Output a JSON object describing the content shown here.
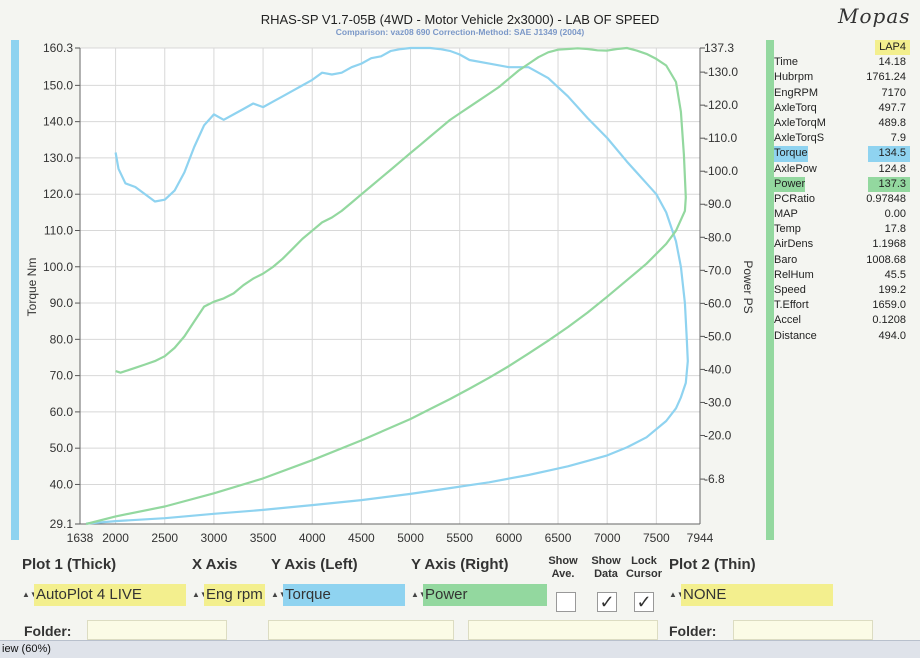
{
  "header": {
    "title": "RHAS-SP V1.7-05B  (4WD - Motor Vehicle 2x3000) - LAB OF SPEED",
    "subtitle": "Comparison: vaz08 690      Correction-Method: SAE J1349 (2004)",
    "handwriting": "Mopas"
  },
  "chart_data": {
    "type": "line",
    "x_label": "",
    "x_ticks": [
      "1638",
      "2000",
      "2500",
      "3000",
      "3500",
      "4000",
      "4500",
      "5000",
      "5500",
      "6000",
      "6500",
      "7000",
      "7500",
      "7944"
    ],
    "xlim": [
      1638,
      7944
    ],
    "y_left": {
      "label": "Torque Nm",
      "ylim": [
        29.1,
        160.3
      ],
      "ticks": [
        "29.1",
        "40.0",
        "50.0",
        "60.0",
        "70.0",
        "80.0",
        "90.0",
        "100.0",
        "110.0",
        "120.0",
        "130.0",
        "140.0",
        "150.0",
        "160.3"
      ]
    },
    "y_right": {
      "label": "Power PS",
      "ylim": [
        -6.8,
        137.3
      ],
      "ticks": [
        "-6.8",
        "-20.0",
        "-30.0",
        "-40.0",
        "-50.0",
        "-60.0",
        "-70.0",
        "-80.0",
        "-90.0",
        "-100.0",
        "-110.0",
        "-120.0",
        "-130.0",
        "137.3"
      ]
    },
    "grid": true,
    "series": [
      {
        "name": "Torque",
        "axis": "left",
        "color": "#8fd3f0",
        "points": [
          [
            2000,
            131.5
          ],
          [
            2030,
            127
          ],
          [
            2100,
            123
          ],
          [
            2200,
            122
          ],
          [
            2300,
            120
          ],
          [
            2400,
            118
          ],
          [
            2500,
            118.5
          ],
          [
            2600,
            121
          ],
          [
            2700,
            126
          ],
          [
            2800,
            133
          ],
          [
            2900,
            139
          ],
          [
            3000,
            142
          ],
          [
            3100,
            140.5
          ],
          [
            3200,
            142
          ],
          [
            3300,
            143.5
          ],
          [
            3400,
            145
          ],
          [
            3500,
            144
          ],
          [
            3600,
            145.5
          ],
          [
            3700,
            147
          ],
          [
            3800,
            148.5
          ],
          [
            3900,
            150
          ],
          [
            4000,
            151.5
          ],
          [
            4100,
            153.5
          ],
          [
            4200,
            153
          ],
          [
            4300,
            153.5
          ],
          [
            4400,
            155
          ],
          [
            4500,
            156
          ],
          [
            4600,
            157.5
          ],
          [
            4700,
            158
          ],
          [
            4800,
            159.5
          ],
          [
            4900,
            160
          ],
          [
            5000,
            160.3
          ],
          [
            5100,
            160.3
          ],
          [
            5200,
            160.3
          ],
          [
            5300,
            160
          ],
          [
            5400,
            159.5
          ],
          [
            5500,
            158.5
          ],
          [
            5600,
            157
          ],
          [
            5800,
            156
          ],
          [
            6000,
            155
          ],
          [
            6200,
            155
          ],
          [
            6400,
            152
          ],
          [
            6600,
            147
          ],
          [
            6800,
            141
          ],
          [
            7000,
            135.5
          ],
          [
            7200,
            129
          ],
          [
            7400,
            123
          ],
          [
            7500,
            120
          ],
          [
            7600,
            115
          ],
          [
            7700,
            107
          ],
          [
            7750,
            100
          ],
          [
            7790,
            90
          ],
          [
            7810,
            80
          ],
          [
            7820,
            74
          ],
          [
            7800,
            68
          ],
          [
            7750,
            64
          ],
          [
            7700,
            61
          ],
          [
            7600,
            57.5
          ],
          [
            7400,
            53
          ],
          [
            7200,
            50.2
          ],
          [
            7000,
            48
          ],
          [
            6800,
            46.5
          ],
          [
            6600,
            45
          ],
          [
            6400,
            43.8
          ],
          [
            6200,
            42.6
          ],
          [
            6000,
            41.6
          ],
          [
            5800,
            40.6
          ],
          [
            5600,
            39.8
          ],
          [
            5400,
            39
          ],
          [
            5200,
            38.2
          ],
          [
            5000,
            37.4
          ],
          [
            4500,
            35.7
          ],
          [
            4000,
            34.3
          ],
          [
            3500,
            33
          ],
          [
            3000,
            31.9
          ],
          [
            2500,
            30.7
          ],
          [
            2000,
            29.9
          ],
          [
            1700,
            29.2
          ]
        ]
      },
      {
        "name": "Power",
        "axis": "right",
        "color": "#93d89f",
        "points": [
          [
            2000,
            39.5
          ],
          [
            2050,
            39
          ],
          [
            2100,
            39.5
          ],
          [
            2200,
            40.5
          ],
          [
            2300,
            41.5
          ],
          [
            2400,
            42.5
          ],
          [
            2500,
            44
          ],
          [
            2600,
            46.5
          ],
          [
            2700,
            50
          ],
          [
            2800,
            54.5
          ],
          [
            2900,
            59
          ],
          [
            3000,
            60.5
          ],
          [
            3100,
            61.5
          ],
          [
            3200,
            63
          ],
          [
            3300,
            65.5
          ],
          [
            3400,
            67.5
          ],
          [
            3500,
            69
          ],
          [
            3600,
            71
          ],
          [
            3700,
            73.5
          ],
          [
            3800,
            76.5
          ],
          [
            3900,
            79.5
          ],
          [
            4000,
            82
          ],
          [
            4100,
            84.5
          ],
          [
            4200,
            86
          ],
          [
            4300,
            88
          ],
          [
            4400,
            90.5
          ],
          [
            4500,
            93
          ],
          [
            4600,
            95.5
          ],
          [
            4700,
            98
          ],
          [
            4800,
            100.5
          ],
          [
            4900,
            103
          ],
          [
            5000,
            105.5
          ],
          [
            5100,
            108
          ],
          [
            5200,
            110.5
          ],
          [
            5300,
            113
          ],
          [
            5400,
            115.5
          ],
          [
            5500,
            117.5
          ],
          [
            5600,
            119.5
          ],
          [
            5700,
            121.5
          ],
          [
            5800,
            123.5
          ],
          [
            5900,
            125.5
          ],
          [
            6000,
            128
          ],
          [
            6100,
            130.5
          ],
          [
            6200,
            132.5
          ],
          [
            6300,
            134.5
          ],
          [
            6400,
            136
          ],
          [
            6500,
            136.8
          ],
          [
            6600,
            137
          ],
          [
            6700,
            137.2
          ],
          [
            6800,
            137
          ],
          [
            6900,
            136.6
          ],
          [
            7000,
            136.5
          ],
          [
            7100,
            137
          ],
          [
            7200,
            137.3
          ],
          [
            7300,
            136.5
          ],
          [
            7400,
            135.5
          ],
          [
            7500,
            134
          ],
          [
            7600,
            132
          ],
          [
            7700,
            127
          ],
          [
            7750,
            118
          ],
          [
            7780,
            105
          ],
          [
            7800,
            92
          ],
          [
            7790,
            88
          ],
          [
            7700,
            82
          ],
          [
            7600,
            78
          ],
          [
            7400,
            72
          ],
          [
            7200,
            67
          ],
          [
            7000,
            62
          ],
          [
            6800,
            57.2
          ],
          [
            6600,
            52.8
          ],
          [
            6400,
            48.7
          ],
          [
            6200,
            44.8
          ],
          [
            6000,
            41
          ],
          [
            5800,
            37.5
          ],
          [
            5600,
            34.2
          ],
          [
            5400,
            31
          ],
          [
            5200,
            28
          ],
          [
            5000,
            25
          ],
          [
            4500,
            18.5
          ],
          [
            4000,
            12.5
          ],
          [
            3500,
            7
          ],
          [
            3000,
            2.5
          ],
          [
            2500,
            -1.5
          ],
          [
            2000,
            -4.5
          ],
          [
            1700,
            -6.8
          ]
        ]
      }
    ]
  },
  "readings": {
    "column_header": "LAP4",
    "rows": [
      {
        "label": "Time",
        "value": "14.18"
      },
      {
        "label": "Hubrpm",
        "value": "1761.24"
      },
      {
        "label": "EngRPM",
        "value": "7170"
      },
      {
        "label": "AxleTorq",
        "value": "497.7"
      },
      {
        "label": "AxleTorqM",
        "value": "489.8"
      },
      {
        "label": "AxleTorqS",
        "value": "7.9"
      },
      {
        "label": "Torque",
        "value": "134.5",
        "highlight": "torque"
      },
      {
        "label": "AxlePow",
        "value": "124.8"
      },
      {
        "label": "Power",
        "value": "137.3",
        "highlight": "power"
      },
      {
        "label": "PCRatio",
        "value": "0.97848"
      },
      {
        "label": "MAP",
        "value": "0.00"
      },
      {
        "label": "Temp",
        "value": "17.8"
      },
      {
        "label": "AirDens",
        "value": "1.1968"
      },
      {
        "label": "Baro",
        "value": "1008.68"
      },
      {
        "label": "RelHum",
        "value": "45.5"
      },
      {
        "label": "Speed",
        "value": "199.2"
      },
      {
        "label": "T.Effort",
        "value": "1659.0"
      },
      {
        "label": "Accel",
        "value": "0.1208"
      },
      {
        "label": "Distance",
        "value": "494.0"
      }
    ]
  },
  "controls": {
    "plot1_label": "Plot 1 (Thick)",
    "xaxis_label": "X Axis",
    "yleft_label": "Y Axis (Left)",
    "yright_label": "Y Axis (Right)",
    "show_ave_label": "Show Ave.",
    "show_data_label": "Show Data",
    "lock_cursor_label": "Lock Cursor",
    "plot2_label": "Plot 2 (Thin)",
    "plot1_value": "AutoPlot 4 LIVE",
    "xaxis_value": "Eng rpm",
    "yleft_value": "Torque",
    "yright_value": "Power",
    "plot2_value": "NONE",
    "show_ave_checked": false,
    "show_data_checked": true,
    "lock_cursor_checked": true,
    "folder_label": "Folder:",
    "folder2_label": "Folder:",
    "check_glyph": "✓",
    "spinner_glyph": "▲▼"
  },
  "status": {
    "text": "iew (60%)"
  },
  "colors": {
    "torque": "#8fd3f0",
    "power": "#93d89f",
    "highlight_yellow": "#f3ef8e",
    "grid": "#d8d8d8"
  }
}
